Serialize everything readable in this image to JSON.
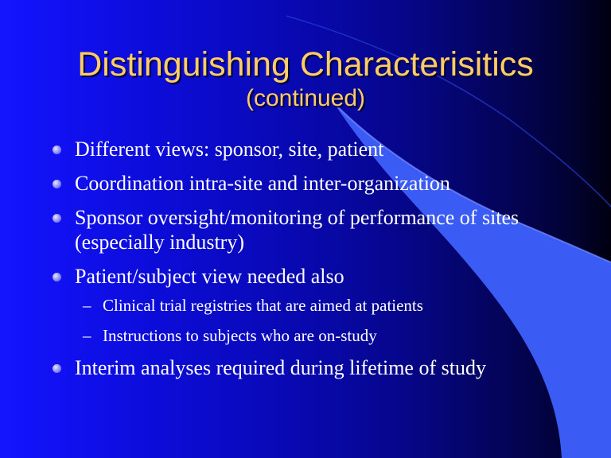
{
  "slide": {
    "title": "Distinguishing Characterisitics",
    "subtitle": "(continued)",
    "bullets": [
      {
        "text": "Different views: sponsor, site, patient"
      },
      {
        "text": "Coordination intra-site and inter-organization"
      },
      {
        "text": "Sponsor oversight/monitoring of performance of sites (especially industry)"
      },
      {
        "text": "Patient/subject view needed also",
        "sub": [
          "Clinical trial registries that are aimed at patients",
          "Instructions to subjects who are on-study"
        ]
      },
      {
        "text": "Interim analyses required during lifetime of study"
      }
    ],
    "sub_marker": "–",
    "colors": {
      "title": "#ffcc66",
      "text": "#ffffff",
      "accent_shape": "#3a5cf5",
      "background_left": "#1414ff",
      "background_right": "#000010"
    }
  }
}
